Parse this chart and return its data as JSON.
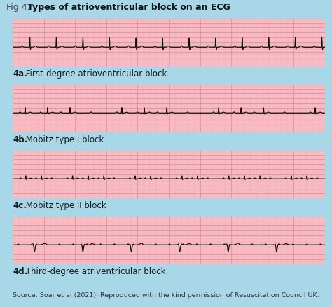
{
  "title_prefix": "Fig 4. ",
  "title_bold": "Types of atrioventricular block on an ECG",
  "background_color": "#a8d8e8",
  "ecg_bg_color": "#f9c0c8",
  "ecg_line_color": "#111111",
  "grid_color_minor": "#e8a0aa",
  "grid_color_major": "#d88090",
  "labels": [
    "4a. First-degree atrioventricular block",
    "4b. Mobitz type I block",
    "4c. Mobitz type II block",
    "4d. Third-degree atriventricular block"
  ],
  "source_text": "Source: Soar et al (2021). Reproduced with the kind permission of Resuscitation Council UK.",
  "fig_width": 4.74,
  "fig_height": 4.39,
  "dpi": 100
}
